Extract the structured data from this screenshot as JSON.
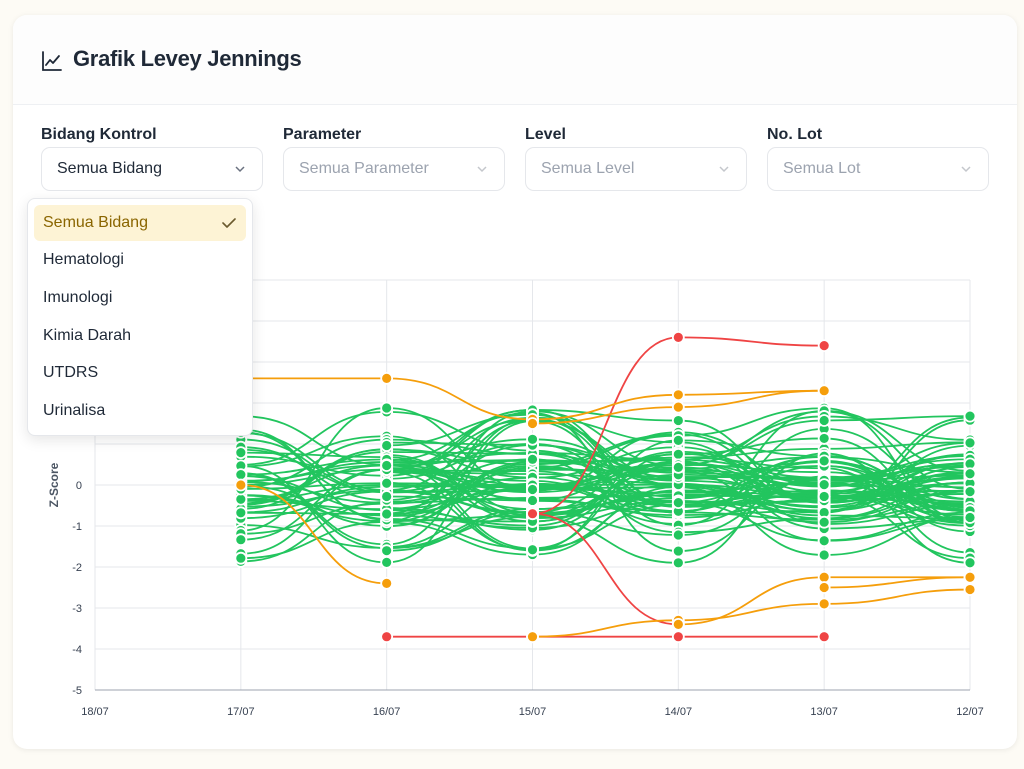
{
  "header": {
    "title": "Grafik Levey Jennings",
    "icon": "line-chart-icon"
  },
  "filters": [
    {
      "label": "Bidang Kontrol",
      "value": "Semua Bidang",
      "active": true
    },
    {
      "label": "Parameter",
      "value": "Semua Parameter",
      "active": false
    },
    {
      "label": "Level",
      "value": "Semua Level",
      "active": false
    },
    {
      "label": "No. Lot",
      "value": "Semua Lot",
      "active": false
    }
  ],
  "dropdown": {
    "options": [
      "Semua Bidang",
      "Hematologi",
      "Imunologi",
      "Kimia Darah",
      "UTDRS",
      "Urinalisa"
    ],
    "selected_index": 0
  },
  "colors": {
    "green": "#22c55e",
    "orange": "#f59e0b",
    "red": "#ef4444",
    "selected_bg": "#fdf3d5",
    "selected_text": "#8a6500"
  },
  "chart_data": {
    "type": "line",
    "ylabel": "Z-Score",
    "xlabel": "",
    "categories": [
      "18/07",
      "17/07",
      "16/07",
      "15/07",
      "14/07",
      "13/07",
      "12/07"
    ],
    "ylim": [
      -5,
      5
    ],
    "yticks_visible": [
      0,
      -1,
      -2,
      -3,
      -4,
      -5
    ],
    "grid": true,
    "highlight_series": [
      {
        "color": "red",
        "values": [
          null,
          null,
          -3.7,
          -3.7,
          -3.7,
          -3.7,
          null
        ]
      },
      {
        "color": "red",
        "values": [
          null,
          null,
          null,
          -0.7,
          3.6,
          3.4,
          null
        ]
      },
      {
        "color": "red",
        "values": [
          null,
          null,
          null,
          -0.7,
          -3.4,
          null,
          null
        ]
      },
      {
        "color": "orange",
        "values": [
          null,
          2.6,
          2.6,
          1.6,
          2.2,
          2.3,
          null
        ]
      },
      {
        "color": "orange",
        "values": [
          null,
          0,
          -2.4,
          null,
          null,
          null,
          null
        ]
      },
      {
        "color": "orange",
        "values": [
          null,
          null,
          null,
          1.5,
          1.9,
          2.3,
          null
        ]
      },
      {
        "color": "orange",
        "values": [
          null,
          null,
          null,
          -3.7,
          -3.3,
          -2.9,
          -2.55
        ]
      },
      {
        "color": "orange",
        "values": [
          null,
          null,
          null,
          null,
          -3.4,
          -2.25,
          -2.25
        ]
      },
      {
        "color": "orange",
        "values": [
          null,
          null,
          null,
          null,
          null,
          -2.5,
          -2.25
        ]
      }
    ]
  }
}
